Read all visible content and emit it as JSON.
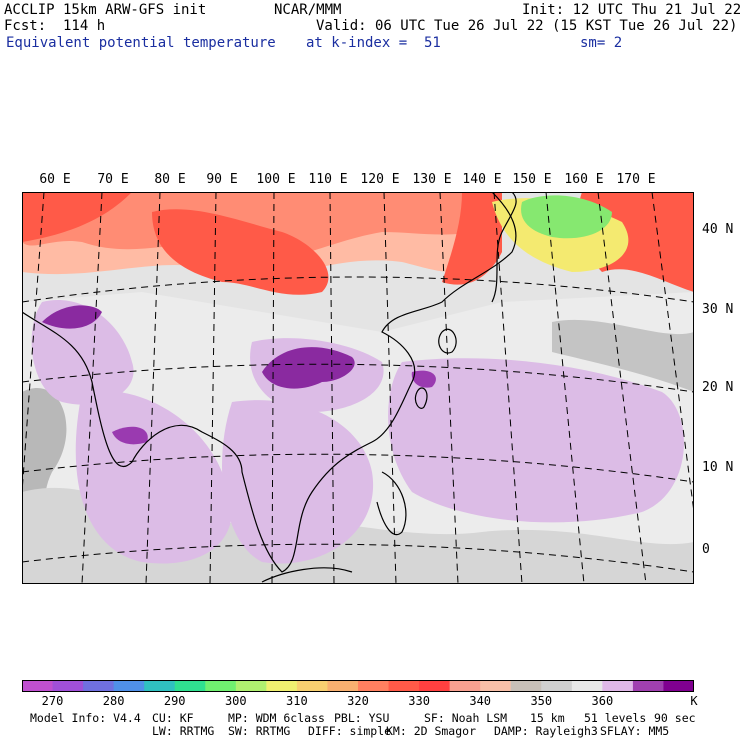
{
  "header": {
    "model": "ACCLIP 15km ARW-GFS init",
    "org": "NCAR/MMM",
    "init": "Init: 12 UTC Thu 21 Jul 22",
    "fcst": "Fcst:  114 h",
    "valid": "Valid: 06 UTC Tue 26 Jul 22 (15 KST Tue 26 Jul 22)",
    "field": "Equivalent potential temperature",
    "level": "at k-index =  51",
    "smooth": "sm= 2"
  },
  "map": {
    "lon_labels": [
      "60 E",
      "70 E",
      "80 E",
      "90 E",
      "100 E",
      "110 E",
      "120 E",
      "130 E",
      "140 E",
      "150 E",
      "160 E",
      "170 E"
    ],
    "lat_labels": [
      "40 N",
      "30 N",
      "20 N",
      "10 N",
      "0"
    ],
    "colors": {
      "hot": "#ff5a48",
      "warm": "#ff8c74",
      "peach": "#ffbba4",
      "gray": "#bcbcbc",
      "lightgray": "#e2e2e2",
      "lilac": "#dcbce6",
      "purple": "#8a2aa0",
      "green": "#86e870",
      "yellow": "#f4ea70"
    }
  },
  "colorbar": {
    "colors": [
      "#c050d0",
      "#a050d8",
      "#7070e0",
      "#5090e8",
      "#30c0c0",
      "#30e090",
      "#70f070",
      "#b0f070",
      "#f0f070",
      "#f8d070",
      "#f8b070",
      "#ff8060",
      "#ff5a48",
      "#ff4040",
      "#f8a090",
      "#f8c0a8",
      "#c8c0b8",
      "#d0d0d0",
      "#e8e8e8",
      "#e0b8e8",
      "#a040b0",
      "#800090"
    ],
    "labels": [
      "270",
      "280",
      "290",
      "300",
      "310",
      "320",
      "330",
      "340",
      "350",
      "360"
    ],
    "unit": "K"
  },
  "model_info": {
    "line1": [
      "Model Info: V4.4",
      "CU: KF",
      "MP: WDM 6class",
      "PBL: YSU",
      "SF: Noah LSM",
      "15 km",
      "51 levels",
      "90 sec"
    ],
    "line2": [
      "LW: RRTMG",
      "SW: RRTMG",
      "DIFF: simple",
      "KM: 2D Smagor",
      "DAMP: Rayleigh3",
      "SFLAY: MM5"
    ]
  }
}
